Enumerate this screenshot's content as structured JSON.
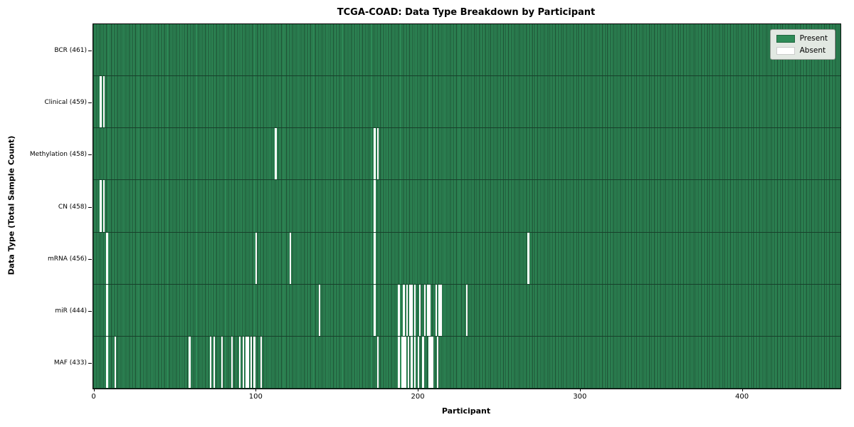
{
  "title": "TCGA-COAD: Data Type Breakdown by Participant",
  "xlabel": "Participant",
  "ylabel": "Data Type (Total Sample Count)",
  "legend": {
    "present_label": "Present",
    "absent_label": "Absent"
  },
  "colors": {
    "present": "#2e8b57",
    "absent": "#ffffff",
    "cell_edge": "#1c4a30",
    "row_separator": "#16402a",
    "frame": "#000000",
    "legend_background": "#e2e8e2"
  },
  "chart_data": {
    "type": "heatmap",
    "title": "TCGA-COAD: Data Type Breakdown by Participant",
    "xlabel": "Participant",
    "ylabel": "Data Type (Total Sample Count)",
    "x_range": [
      0,
      461
    ],
    "xticks": [
      0,
      100,
      200,
      300,
      400
    ],
    "total_participants": 461,
    "legend_position": "upper right",
    "rows": [
      {
        "name": "BCR",
        "label": "BCR (461)",
        "count": 461,
        "absent_participants": []
      },
      {
        "name": "Clinical",
        "label": "Clinical (459)",
        "count": 459,
        "absent_participants": [
          4,
          6
        ]
      },
      {
        "name": "Methylation",
        "label": "Methylation (458)",
        "count": 458,
        "absent_participants": [
          112,
          173,
          175
        ]
      },
      {
        "name": "CN",
        "label": "CN (458)",
        "count": 458,
        "absent_participants": [
          4,
          6,
          173
        ]
      },
      {
        "name": "mRNA",
        "label": "mRNA (456)",
        "count": 456,
        "absent_participants": [
          8,
          100,
          121,
          173,
          268
        ]
      },
      {
        "name": "miR",
        "label": "miR (444)",
        "count": 444,
        "absent_participants": [
          8,
          139,
          173,
          188,
          191,
          193,
          195,
          196,
          198,
          201,
          204,
          206,
          207,
          211,
          213,
          214,
          230
        ]
      },
      {
        "name": "MAF",
        "label": "MAF (433)",
        "count": 433,
        "absent_participants": [
          8,
          13,
          59,
          72,
          74,
          79,
          85,
          90,
          92,
          94,
          95,
          97,
          99,
          103,
          175,
          188,
          190,
          191,
          192,
          194,
          196,
          198,
          200,
          203,
          207,
          208,
          209,
          212
        ]
      }
    ]
  }
}
